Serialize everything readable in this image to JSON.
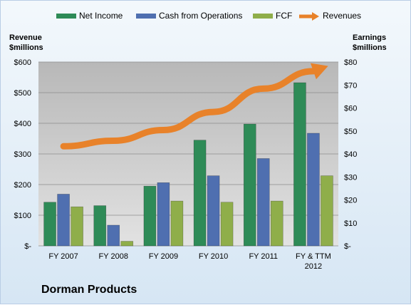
{
  "company": "Dorman Products",
  "axes": {
    "left_title_line1": "Revenue",
    "left_title_line2": "$millions",
    "right_title_line1": "Earnings",
    "right_title_line2": "$millions"
  },
  "colors": {
    "net_income": "#2e8b57",
    "cash_from_operations": "#4f6fb0",
    "fcf": "#8fae4a",
    "revenues": "#e8822a",
    "plot_background": "#c8c8c8"
  },
  "chart_data": {
    "type": "bar",
    "categories": [
      "FY 2007",
      "FY 2008",
      "FY 2009",
      "FY 2010",
      "FY 2011",
      "FY & TTM 2012"
    ],
    "series": [
      {
        "name": "Net Income",
        "axis": "right",
        "values": [
          19,
          17.5,
          26,
          46,
          53,
          71
        ]
      },
      {
        "name": "Cash from Operations",
        "axis": "right",
        "values": [
          22.5,
          9,
          27.5,
          30.5,
          38,
          49
        ]
      },
      {
        "name": "FCF",
        "axis": "right",
        "values": [
          17,
          2,
          19.5,
          19,
          19.5,
          30.5
        ]
      },
      {
        "name": "Revenues",
        "axis": "left",
        "type": "line",
        "values": [
          325,
          343,
          378,
          437,
          513,
          570
        ]
      }
    ],
    "y_left": {
      "label": "Revenue $millions",
      "ylim": [
        0,
        600
      ],
      "ticks": [
        "$-",
        "$100",
        "$200",
        "$300",
        "$400",
        "$500",
        "$600"
      ]
    },
    "y_right": {
      "label": "Earnings $millions",
      "ylim": [
        0,
        80
      ],
      "ticks": [
        "$-",
        "$10",
        "$20",
        "$30",
        "$40",
        "$50",
        "$60",
        "$70",
        "$80"
      ]
    },
    "grid": true,
    "legend": "top"
  }
}
